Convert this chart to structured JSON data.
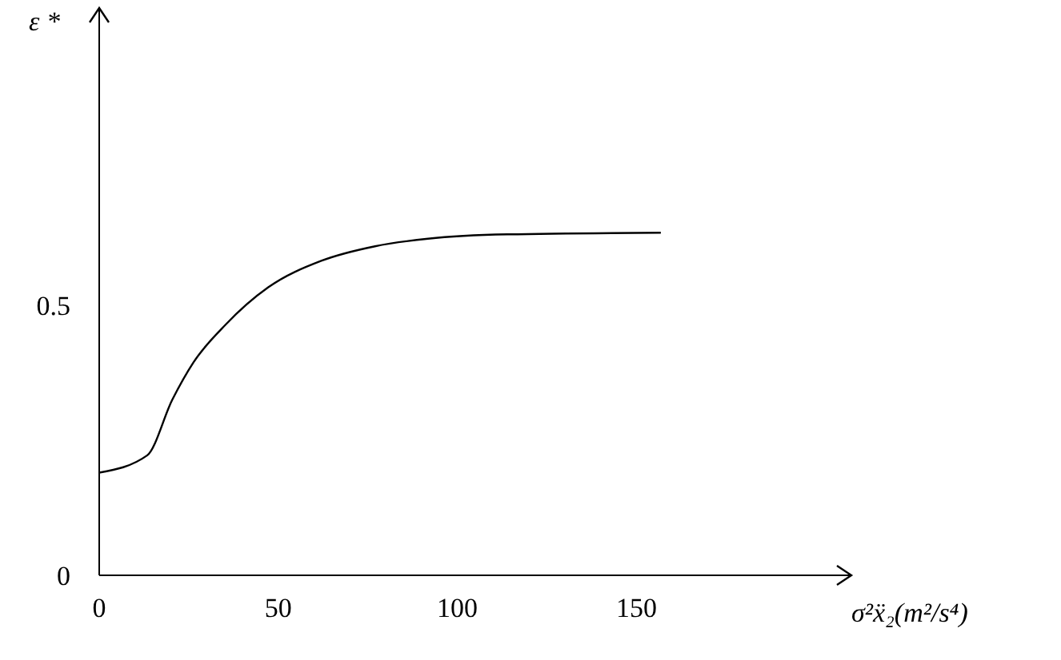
{
  "chart_data": {
    "type": "line",
    "xlabel": "σ²ẍ₂(m²/s⁴)",
    "ylabel": "ε *",
    "x": [
      0,
      13.4,
      20.4,
      26.3,
      35.3,
      47.2,
      62,
      77,
      91.8,
      114,
      156.8
    ],
    "series": [
      {
        "color": "#000000",
        "values": [
          0.19,
          0.222,
          0.325,
          0.394,
          0.464,
          0.533,
          0.582,
          0.609,
          0.623,
          0.631,
          0.634
        ]
      }
    ],
    "xlim": [
      0,
      210
    ],
    "xticks": [
      0,
      50,
      100,
      150
    ],
    "ylim": [
      0,
      1.05
    ],
    "yticks": [
      0,
      0.5
    ],
    "marker": "none",
    "line_style": "solid"
  }
}
